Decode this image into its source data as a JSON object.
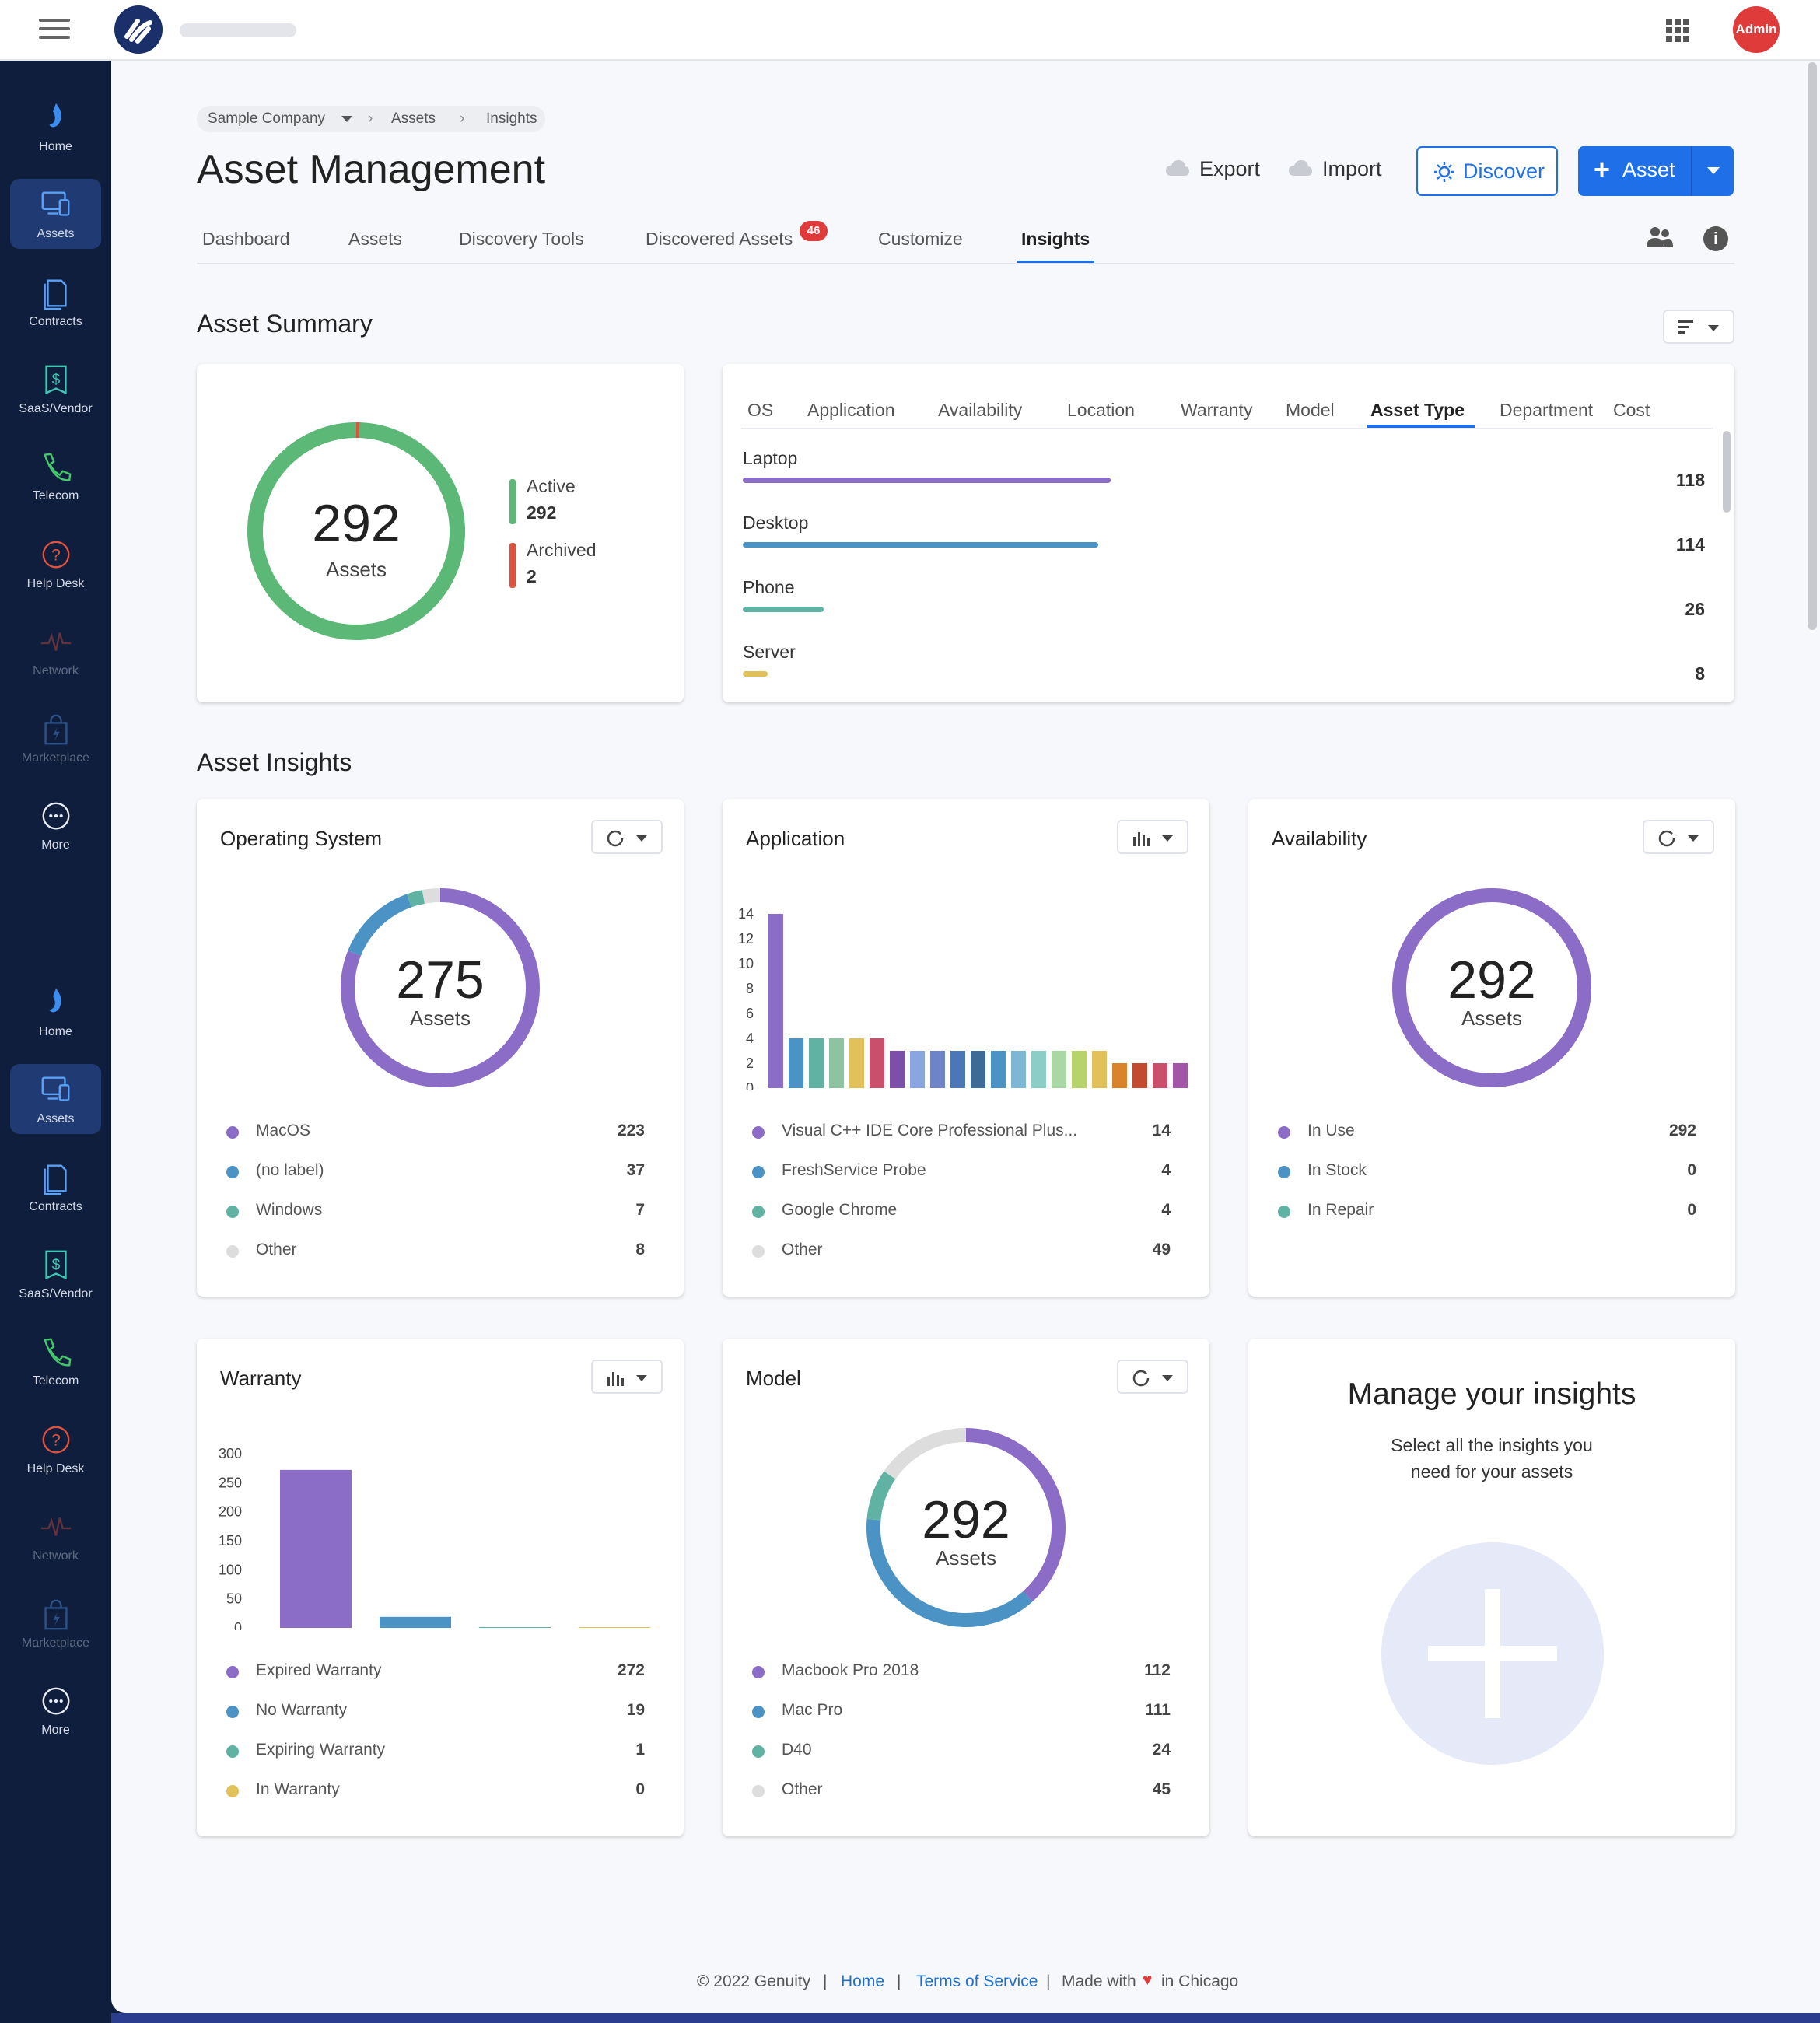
{
  "topbar": {
    "user_badge": "Admin"
  },
  "sidebar": {
    "items": [
      {
        "label": "Home"
      },
      {
        "label": "Assets"
      },
      {
        "label": "Contracts"
      },
      {
        "label": "SaaS/Vendor"
      },
      {
        "label": "Telecom"
      },
      {
        "label": "Help Desk"
      },
      {
        "label": "Network"
      },
      {
        "label": "Marketplace"
      },
      {
        "label": "More"
      }
    ]
  },
  "breadcrumb": {
    "company": "Sample Company",
    "section": "Assets",
    "page": "Insights"
  },
  "header": {
    "title": "Asset Management",
    "export": "Export",
    "import": "Import",
    "discover": "Discover",
    "add_asset": "Asset"
  },
  "tabs": {
    "dashboard": "Dashboard",
    "assets": "Assets",
    "discovery": "Discovery Tools",
    "discovered": "Discovered Assets",
    "discovered_badge": "46",
    "customize": "Customize",
    "insights": "Insights"
  },
  "summary": {
    "title": "Asset Summary",
    "total": "292",
    "total_label": "Assets",
    "active_label": "Active",
    "active_value": "292",
    "archived_label": "Archived",
    "archived_value": "2",
    "subtabs": [
      "OS",
      "Application",
      "Availability",
      "Location",
      "Warranty",
      "Model",
      "Asset Type",
      "Department",
      "Cost"
    ],
    "selected_subtab": "Asset Type",
    "types": [
      {
        "name": "Laptop",
        "value": 118,
        "color": "#8b6cc6"
      },
      {
        "name": "Desktop",
        "value": 114,
        "color": "#4b93c4"
      },
      {
        "name": "Phone",
        "value": 26,
        "color": "#60b3a3"
      },
      {
        "name": "Server",
        "value": 8,
        "color": "#e2c15a"
      }
    ]
  },
  "insights": {
    "title": "Asset Insights",
    "os": {
      "title": "Operating System",
      "total": "275",
      "total_label": "Assets",
      "legend": [
        {
          "label": "MacOS",
          "value": "223",
          "color": "#8b6cc6"
        },
        {
          "label": "(no label)",
          "value": "37",
          "color": "#4b93c4"
        },
        {
          "label": "Windows",
          "value": "7",
          "color": "#60b3a3"
        },
        {
          "label": "Other",
          "value": "8",
          "color": "#dddddd"
        }
      ]
    },
    "application": {
      "title": "Application",
      "legend": [
        {
          "label": "Visual C++ IDE Core Professional Plus...",
          "value": "14",
          "color": "#8b6cc6"
        },
        {
          "label": "FreshService Probe",
          "value": "4",
          "color": "#4b93c4"
        },
        {
          "label": "Google Chrome",
          "value": "4",
          "color": "#60b3a3"
        },
        {
          "label": "Other",
          "value": "49",
          "color": "#dddddd"
        }
      ]
    },
    "availability": {
      "title": "Availability",
      "total": "292",
      "total_label": "Assets",
      "legend": [
        {
          "label": "In Use",
          "value": "292",
          "color": "#8b6cc6"
        },
        {
          "label": "In Stock",
          "value": "0",
          "color": "#4b93c4"
        },
        {
          "label": "In Repair",
          "value": "0",
          "color": "#60b3a3"
        }
      ]
    },
    "warranty": {
      "title": "Warranty",
      "legend": [
        {
          "label": "Expired Warranty",
          "value": "272",
          "color": "#8b6cc6"
        },
        {
          "label": "No Warranty",
          "value": "19",
          "color": "#4b93c4"
        },
        {
          "label": "Expiring Warranty",
          "value": "1",
          "color": "#60b3a3"
        },
        {
          "label": "In Warranty",
          "value": "0",
          "color": "#e2c15a"
        }
      ]
    },
    "model": {
      "title": "Model",
      "total": "292",
      "total_label": "Assets",
      "legend": [
        {
          "label": "Macbook Pro 2018",
          "value": "112",
          "color": "#8b6cc6"
        },
        {
          "label": "Mac Pro",
          "value": "111",
          "color": "#4b93c4"
        },
        {
          "label": "D40",
          "value": "24",
          "color": "#60b3a3"
        },
        {
          "label": "Other",
          "value": "45",
          "color": "#dddddd"
        }
      ]
    },
    "manage": {
      "title": "Manage your insights",
      "subtitle_line1": "Select all the insights you",
      "subtitle_line2": "need for your assets"
    }
  },
  "chart_data": [
    {
      "type": "pie",
      "name": "Operating System",
      "labels": [
        "MacOS",
        "(no label)",
        "Windows",
        "Other"
      ],
      "values": [
        223,
        37,
        7,
        8
      ],
      "colors": [
        "#8b6cc6",
        "#4b93c4",
        "#60b3a3",
        "#dddddd"
      ]
    },
    {
      "type": "bar",
      "name": "Application",
      "ylim": [
        0,
        14
      ],
      "yticks": [
        0,
        2,
        4,
        6,
        8,
        10,
        12,
        14
      ],
      "values": [
        14,
        4,
        4,
        4,
        4,
        4,
        3,
        3,
        3,
        3,
        3,
        3,
        3,
        3,
        3,
        3,
        3,
        2,
        2,
        2,
        2
      ],
      "colors": [
        "#8b6cc6",
        "#4b93c4",
        "#60b3a3",
        "#8dc3a0",
        "#e2c15a",
        "#c94f6d",
        "#7c4fa8",
        "#8aa6e0",
        "#6f84c8",
        "#4b77b7",
        "#3d6b96",
        "#4b93c4",
        "#7db7d6",
        "#8dcdc8",
        "#a9d7a6",
        "#b6d46b",
        "#e2c15a",
        "#d9842b",
        "#c24a2f",
        "#c94f6d",
        "#a356a8"
      ]
    },
    {
      "type": "pie",
      "name": "Availability",
      "labels": [
        "In Use",
        "In Stock",
        "In Repair"
      ],
      "values": [
        292,
        0,
        0
      ],
      "colors": [
        "#8b6cc6",
        "#4b93c4",
        "#60b3a3"
      ]
    },
    {
      "type": "bar",
      "name": "Warranty",
      "categories": [
        "Expired Warranty",
        "No Warranty",
        "Expiring Warranty",
        "In Warranty"
      ],
      "values": [
        272,
        19,
        1,
        0
      ],
      "ylim": [
        0,
        300
      ],
      "yticks": [
        0,
        50,
        100,
        150,
        200,
        250,
        300
      ],
      "colors": [
        "#8b6cc6",
        "#4b93c4",
        "#60b3a3",
        "#e2c15a"
      ]
    },
    {
      "type": "pie",
      "name": "Model",
      "labels": [
        "Macbook Pro 2018",
        "Mac Pro",
        "D40",
        "Other"
      ],
      "values": [
        112,
        111,
        24,
        45
      ],
      "colors": [
        "#8b6cc6",
        "#4b93c4",
        "#60b3a3",
        "#dddddd"
      ]
    }
  ],
  "footer": {
    "copyright": "© 2022 Genuity",
    "home": "Home",
    "terms": "Terms of Service",
    "made_with": "Made with",
    "in_city": "in Chicago"
  }
}
